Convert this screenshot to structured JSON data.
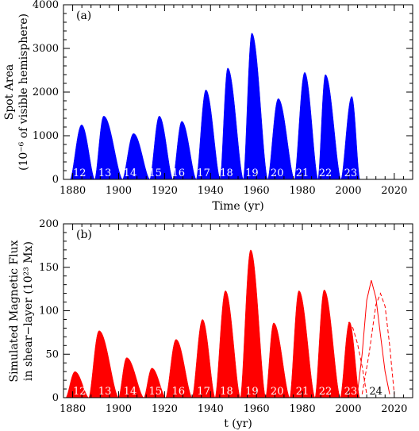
{
  "colors": {
    "panel_a_fill": "#0000ff",
    "panel_b_fill": "#ff0000",
    "axis": "#000000",
    "label_on_fill": "#ffffff"
  },
  "chart_data": [
    {
      "type": "area",
      "panel_label": "(a)",
      "xlabel": "Time (yr)",
      "ylabel_line1": "Spot Area",
      "ylabel_line2": "(10⁻⁶ of visible hemisphere)",
      "xlim": [
        1876,
        2028
      ],
      "ylim": [
        0,
        4000
      ],
      "x_ticks": [
        1880,
        1900,
        1920,
        1940,
        1960,
        1980,
        2000,
        2020
      ],
      "x_tick_labels": [
        "1880",
        "1900",
        "1920",
        "1940",
        "1960",
        "1980",
        "2000",
        "2020"
      ],
      "y_ticks": [
        0,
        1000,
        2000,
        3000,
        4000
      ],
      "y_tick_labels": [
        "0",
        "1000",
        "2000",
        "3000",
        "4000"
      ],
      "cycle_labels": [
        {
          "text": "12",
          "x": 1883
        },
        {
          "text": "13",
          "x": 1894
        },
        {
          "text": "14",
          "x": 1905
        },
        {
          "text": "15",
          "x": 1916
        },
        {
          "text": "16",
          "x": 1926
        },
        {
          "text": "17",
          "x": 1937
        },
        {
          "text": "18",
          "x": 1947
        },
        {
          "text": "19",
          "x": 1958
        },
        {
          "text": "20",
          "x": 1969
        },
        {
          "text": "21",
          "x": 1980
        },
        {
          "text": "22",
          "x": 1990
        },
        {
          "text": "23",
          "x": 2001
        }
      ],
      "cycles": [
        {
          "start": 1878.9,
          "peak": 1883.9,
          "end": 1889.6,
          "peak_value": 1250
        },
        {
          "start": 1889.6,
          "peak": 1893.5,
          "end": 1901.7,
          "peak_value": 1450
        },
        {
          "start": 1901.7,
          "peak": 1906.5,
          "end": 1913.6,
          "peak_value": 1050
        },
        {
          "start": 1913.6,
          "peak": 1917.7,
          "end": 1923.6,
          "peak_value": 1450
        },
        {
          "start": 1923.6,
          "peak": 1927.5,
          "end": 1933.8,
          "peak_value": 1330
        },
        {
          "start": 1933.8,
          "peak": 1938.0,
          "end": 1944.2,
          "peak_value": 2050
        },
        {
          "start": 1944.2,
          "peak": 1947.5,
          "end": 1954.3,
          "peak_value": 2550
        },
        {
          "start": 1954.3,
          "peak": 1958.0,
          "end": 1964.9,
          "peak_value": 3350
        },
        {
          "start": 1964.9,
          "peak": 1969.5,
          "end": 1976.5,
          "peak_value": 1850
        },
        {
          "start": 1976.5,
          "peak": 1981.0,
          "end": 1986.8,
          "peak_value": 2450
        },
        {
          "start": 1986.8,
          "peak": 1990.0,
          "end": 1996.8,
          "peak_value": 2400
        },
        {
          "start": 1996.8,
          "peak": 2001.5,
          "end": 2005.0,
          "peak_value": 1900
        }
      ]
    },
    {
      "type": "area",
      "panel_label": "(b)",
      "xlabel": "t (yr)",
      "ylabel_line1": "Simulated Magnetic Flux",
      "ylabel_line2": "in shear−layer (10²³ Mx)",
      "xlim": [
        1876,
        2028
      ],
      "ylim": [
        0,
        200
      ],
      "x_ticks": [
        1880,
        1900,
        1920,
        1940,
        1960,
        1980,
        2000,
        2020
      ],
      "x_tick_labels": [
        "1880",
        "1900",
        "1920",
        "1940",
        "1960",
        "1980",
        "2000",
        "2020"
      ],
      "y_ticks": [
        0,
        50,
        100,
        150,
        200
      ],
      "y_tick_labels": [
        "0",
        "50",
        "100",
        "150",
        "200"
      ],
      "cycle_labels": [
        {
          "text": "12",
          "x": 1883
        },
        {
          "text": "13",
          "x": 1894
        },
        {
          "text": "14",
          "x": 1905
        },
        {
          "text": "15",
          "x": 1916
        },
        {
          "text": "16",
          "x": 1926
        },
        {
          "text": "17",
          "x": 1937
        },
        {
          "text": "18",
          "x": 1947
        },
        {
          "text": "19",
          "x": 1958
        },
        {
          "text": "20",
          "x": 1969
        },
        {
          "text": "21",
          "x": 1980
        },
        {
          "text": "22",
          "x": 1990
        },
        {
          "text": "23",
          "x": 2001
        },
        {
          "text": "24",
          "x": 2012
        }
      ],
      "cycles": [
        {
          "start": 1877.0,
          "peak": 1881.0,
          "end": 1887.0,
          "peak_value": 30
        },
        {
          "start": 1887.0,
          "peak": 1891.5,
          "end": 1900.0,
          "peak_value": 77
        },
        {
          "start": 1900.0,
          "peak": 1903.5,
          "end": 1911.0,
          "peak_value": 46
        },
        {
          "start": 1911.0,
          "peak": 1914.5,
          "end": 1920.5,
          "peak_value": 34
        },
        {
          "start": 1920.5,
          "peak": 1925.0,
          "end": 1932.0,
          "peak_value": 67
        },
        {
          "start": 1932.0,
          "peak": 1936.5,
          "end": 1942.0,
          "peak_value": 90
        },
        {
          "start": 1942.0,
          "peak": 1946.5,
          "end": 1953.0,
          "peak_value": 123
        },
        {
          "start": 1953.0,
          "peak": 1957.5,
          "end": 1964.0,
          "peak_value": 170
        },
        {
          "start": 1964.0,
          "peak": 1967.5,
          "end": 1974.5,
          "peak_value": 86
        },
        {
          "start": 1974.5,
          "peak": 1978.5,
          "end": 1985.5,
          "peak_value": 123
        },
        {
          "start": 1985.5,
          "peak": 1989.5,
          "end": 1996.5,
          "peak_value": 124
        },
        {
          "start": 1996.5,
          "peak": 2000.5,
          "end": 2005.0,
          "peak_value": 87
        }
      ],
      "forecast_series": [
        {
          "style": "dashed",
          "x": [
            2000.0,
            2002.0,
            2004.0,
            2006.0,
            2008.0
          ],
          "y": [
            87,
            80,
            62,
            36,
            4
          ]
        },
        {
          "style": "solid",
          "x": [
            2004.0,
            2006.0,
            2008.0,
            2010.0,
            2012.0,
            2014.0,
            2016.0,
            2018.0
          ],
          "y": [
            6,
            50,
            112,
            135,
            115,
            72,
            30,
            4
          ]
        },
        {
          "style": "dashed",
          "x": [
            2006.0,
            2009.0,
            2012.0,
            2014.0,
            2016.0,
            2018.0,
            2020.0
          ],
          "y": [
            4,
            50,
            107,
            120,
            105,
            60,
            4
          ]
        }
      ]
    }
  ]
}
